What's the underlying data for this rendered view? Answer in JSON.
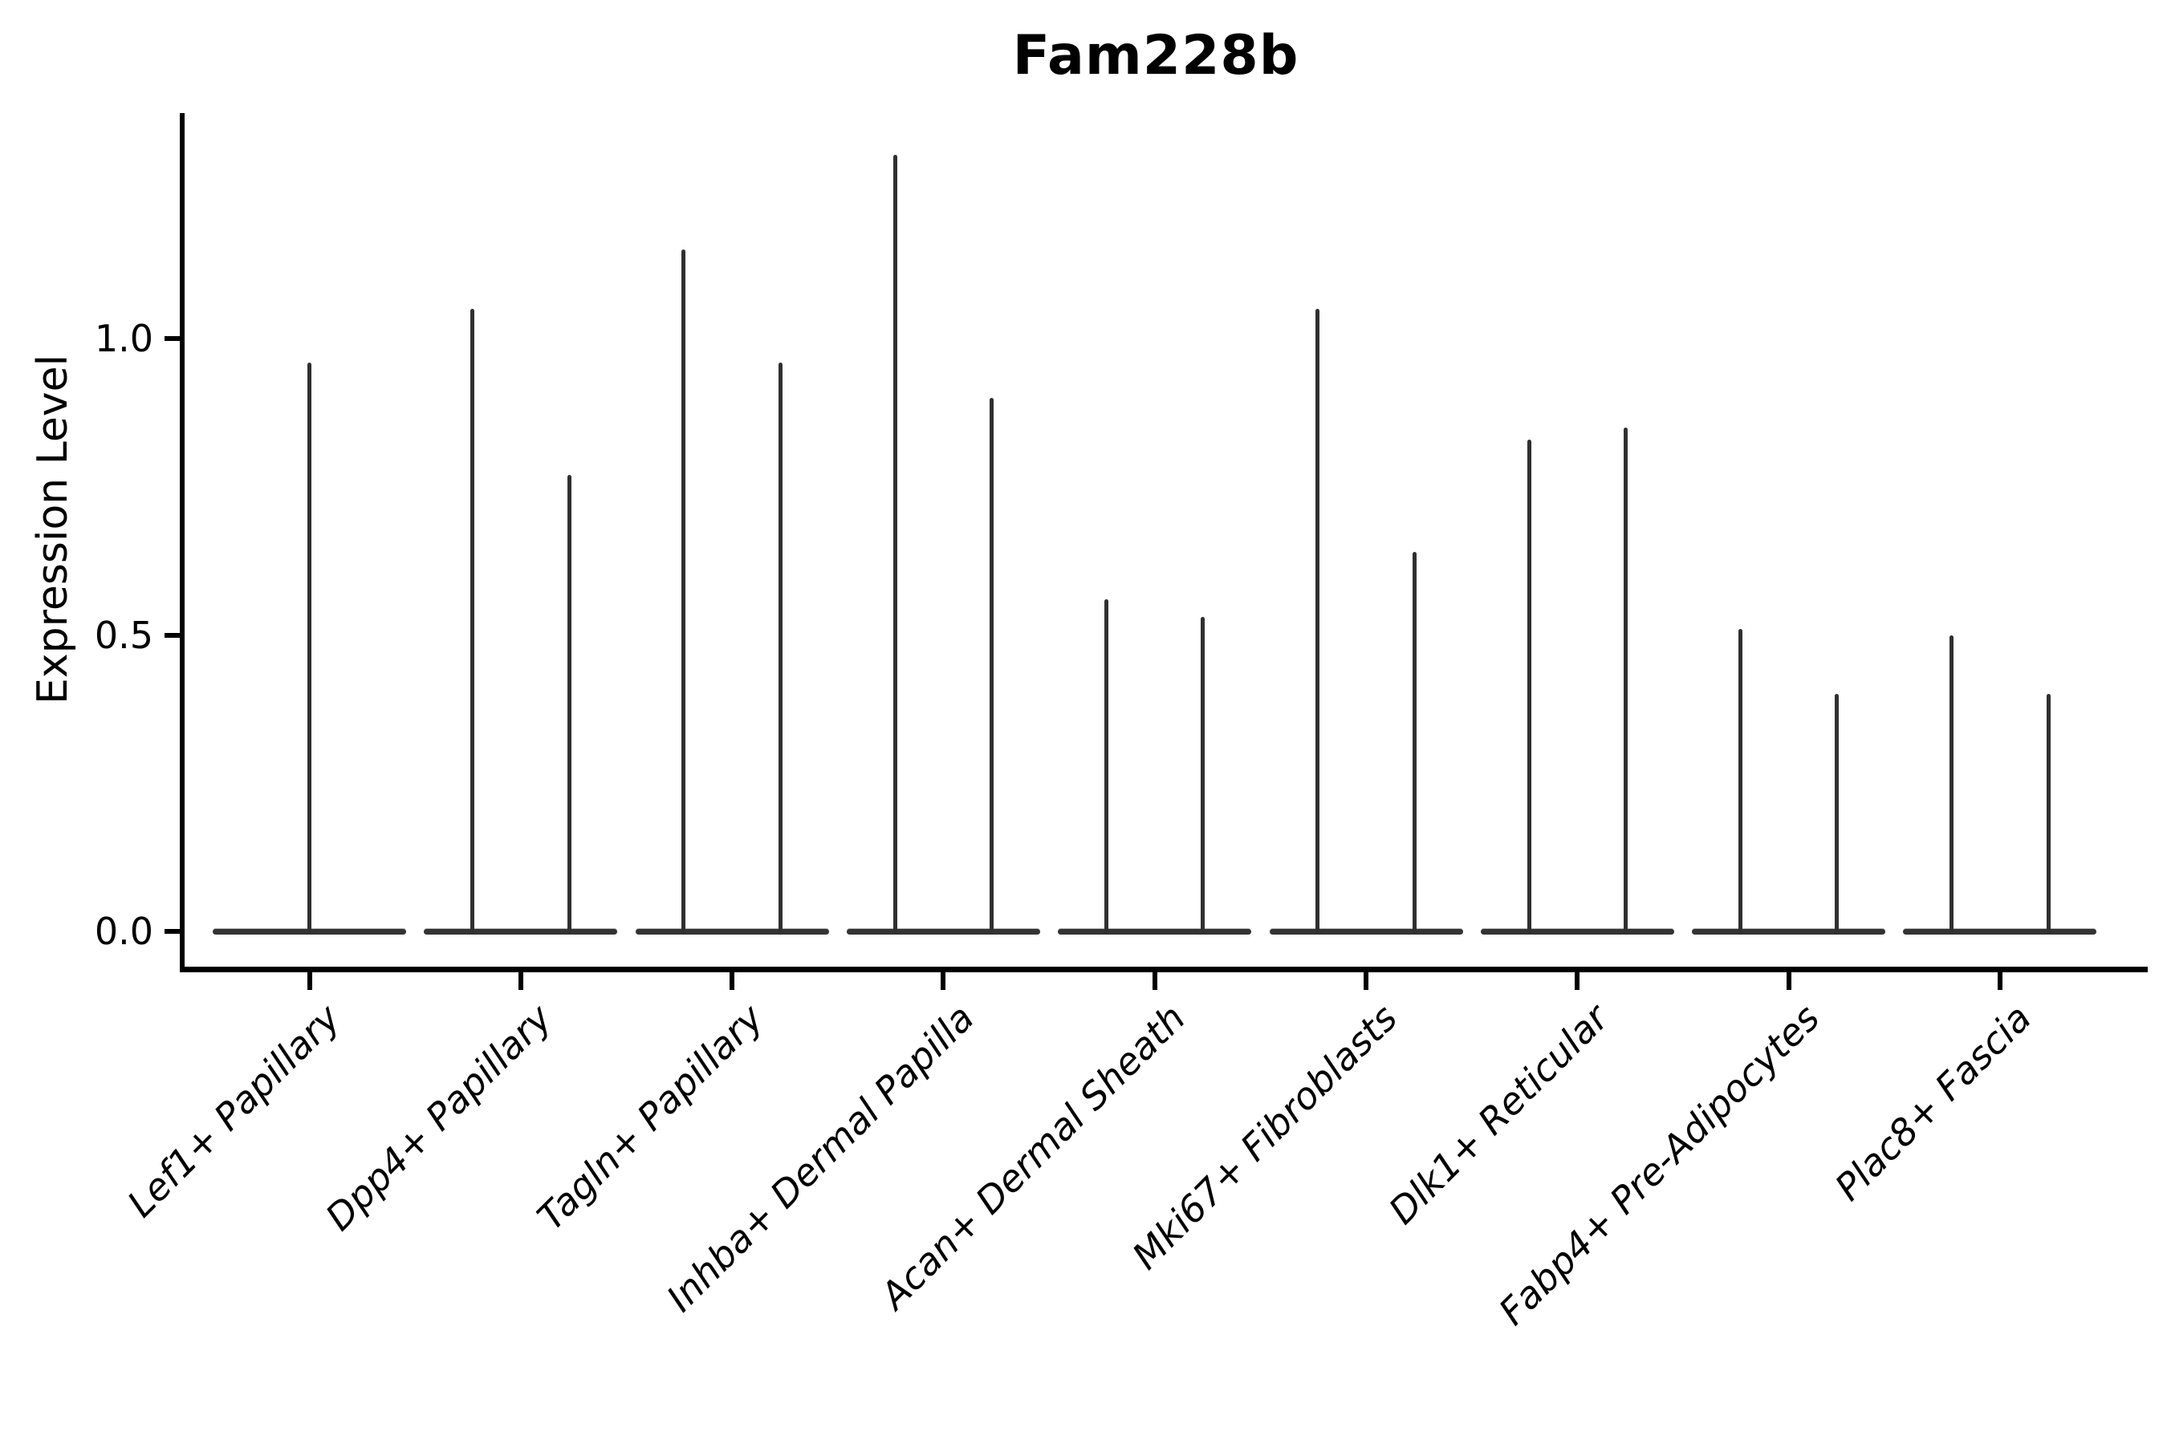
{
  "title": "Fam228b",
  "chart_data": {
    "type": "violin",
    "title": "Fam228b",
    "xlabel": "",
    "ylabel": "Expression Level",
    "yticks": [
      "0.0",
      "0.5",
      "1.0"
    ],
    "ytick_values": [
      0.0,
      0.5,
      1.0
    ],
    "ylim": [
      -0.07,
      1.38
    ],
    "grid": false,
    "legend": null,
    "background": "#ffffff",
    "axis_color": "#000000",
    "violin_color": "#333333",
    "categories": [
      "Lef1+ Papillary",
      "Dpp4+ Papillary",
      "Tagln+ Papillary",
      "Inhba+ Dermal Papilla",
      "Acan+ Dermal Sheath",
      "Mki67+ Fibroblasts",
      "Dlk1+ Reticular",
      "Fabp4+ Pre-Adipocytes",
      "Plac8+ Fascia"
    ],
    "violins": [
      {
        "category": "Lef1+ Papillary",
        "spike_heights": [
          0.96
        ]
      },
      {
        "category": "Dpp4+ Papillary",
        "spike_heights": [
          1.05,
          0.77
        ]
      },
      {
        "category": "Tagln+ Papillary",
        "spike_heights": [
          1.15,
          0.96
        ]
      },
      {
        "category": "Inhba+ Dermal Papilla",
        "spike_heights": [
          1.31,
          0.9
        ]
      },
      {
        "category": "Acan+ Dermal Sheath",
        "spike_heights": [
          0.56,
          0.53
        ]
      },
      {
        "category": "Mki67+ Fibroblasts",
        "spike_heights": [
          1.05,
          0.64
        ]
      },
      {
        "category": "Dlk1+ Reticular",
        "spike_heights": [
          0.83,
          0.85
        ]
      },
      {
        "category": "Fabp4+ Pre-Adipocytes",
        "spike_heights": [
          0.51,
          0.4
        ]
      },
      {
        "category": "Plac8+ Fascia",
        "spike_heights": [
          0.5,
          0.4
        ]
      }
    ],
    "description": "Violin plot of gene expression; most mass at 0 so each violin renders as a wide flat base at y=0 with a thin needle spike up to its maximum expression value."
  }
}
